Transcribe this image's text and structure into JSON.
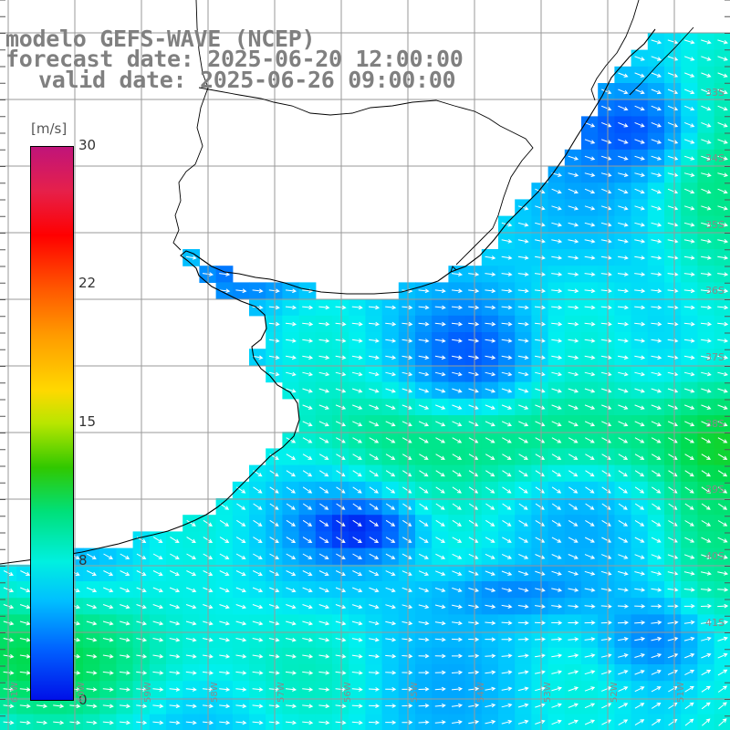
{
  "title": {
    "line1": "modelo GEFS-WAVE (NCEP)",
    "line2": "forecast date: 2025-06-20 12:00:00",
    "line3": "valid date: 2025-06-26 09:00:00"
  },
  "colorbar": {
    "units": "[m/s]",
    "ticks": [
      "30",
      "22",
      "15",
      "8",
      "0"
    ],
    "colors": {
      "max": "#c0147a",
      "high": "#ff0000",
      "mid_high": "#ff9a00",
      "mid": "#30c800",
      "low_mid": "#00f0e0",
      "low": "#0010e8"
    }
  },
  "map": {
    "land_color": "#ffffff",
    "grid_color": "#9a9a9a",
    "coastline_color": "#000000",
    "arrow_color": "#ffffff",
    "lat_labels": [
      "33S",
      "34S",
      "35S",
      "36S",
      "37S",
      "38S",
      "39S",
      "40S",
      "41S"
    ],
    "lon_labels": [
      "61W",
      "60W",
      "59W",
      "58W",
      "57W",
      "56W",
      "55W",
      "54W",
      "53W",
      "52W",
      "51W"
    ]
  }
}
